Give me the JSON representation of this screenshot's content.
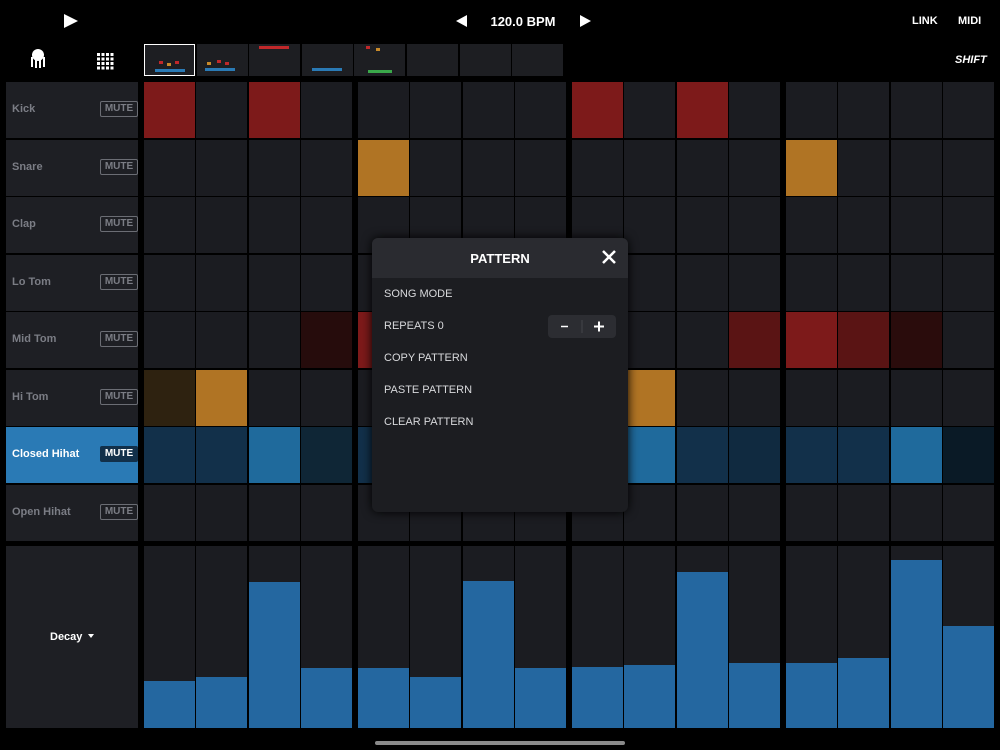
{
  "header": {
    "bpm": "120.0 BPM",
    "link": "LINK",
    "midi": "MIDI",
    "shift": "SHIFT"
  },
  "tracks": [
    {
      "name": "Kick",
      "mute": "MUTE"
    },
    {
      "name": "Snare",
      "mute": "MUTE"
    },
    {
      "name": "Clap",
      "mute": "MUTE"
    },
    {
      "name": "Lo Tom",
      "mute": "MUTE"
    },
    {
      "name": "Mid Tom",
      "mute": "MUTE"
    },
    {
      "name": "Hi Tom",
      "mute": "MUTE"
    },
    {
      "name": "Closed Hihat",
      "mute": "MUTE"
    },
    {
      "name": "Open Hihat",
      "mute": "MUTE"
    }
  ],
  "lane": {
    "param": "Decay"
  },
  "dialog": {
    "title": "PATTERN",
    "items": [
      "SONG MODE",
      "REPEATS 0",
      "COPY PATTERN",
      "PASTE PATTERN",
      "CLEAR PATTERN"
    ]
  }
}
